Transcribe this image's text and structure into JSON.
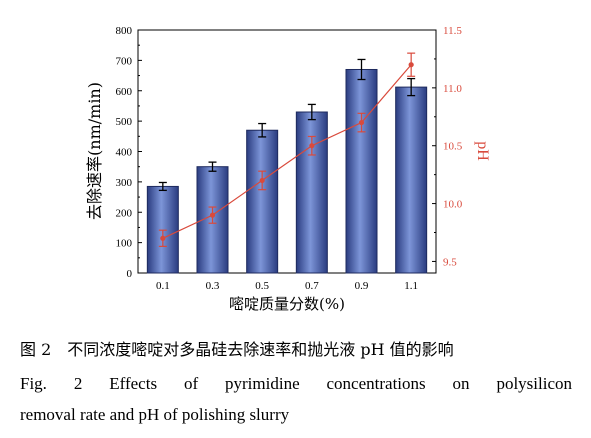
{
  "chart_data": {
    "type": "bar",
    "categories": [
      "0.1",
      "0.3",
      "0.5",
      "0.7",
      "0.9",
      "1.1"
    ],
    "xlabel": "嘧啶质量分数(%)",
    "series": [
      {
        "axis": "left",
        "type": "bar",
        "values": [
          285,
          350,
          470,
          530,
          670,
          612
        ],
        "errors": [
          13,
          15,
          22,
          25,
          33,
          28
        ],
        "color": "#3a4f9a"
      },
      {
        "axis": "right",
        "type": "line",
        "values": [
          9.7,
          9.9,
          10.2,
          10.5,
          10.7,
          11.2
        ],
        "errors": [
          0.07,
          0.07,
          0.08,
          0.08,
          0.08,
          0.1
        ],
        "color": "#d94a3c"
      }
    ],
    "left_axis": {
      "label": "去除速率(nm/min)",
      "ylim": [
        0,
        800
      ],
      "ticks": [
        "0",
        "100",
        "200",
        "300",
        "400",
        "500",
        "600",
        "700",
        "800"
      ]
    },
    "right_axis": {
      "label": "pH",
      "ylim": [
        9.4,
        11.5
      ],
      "ticks": [
        "9.5",
        "10.0",
        "10.5",
        "11.0",
        "11.5"
      ],
      "tick_values": [
        9.5,
        10.0,
        10.5,
        11.0,
        11.5
      ],
      "color": "#d94a3c"
    },
    "grid": false
  },
  "caption": {
    "zh": "图 2　不同浓度嘧啶对多晶硅去除速率和抛光液 pH 值的影响",
    "en_line1": "Fig. 2    Effects of pyrimidine concentrations on polysilicon",
    "en_line2": "removal rate and pH of polishing slurry"
  }
}
